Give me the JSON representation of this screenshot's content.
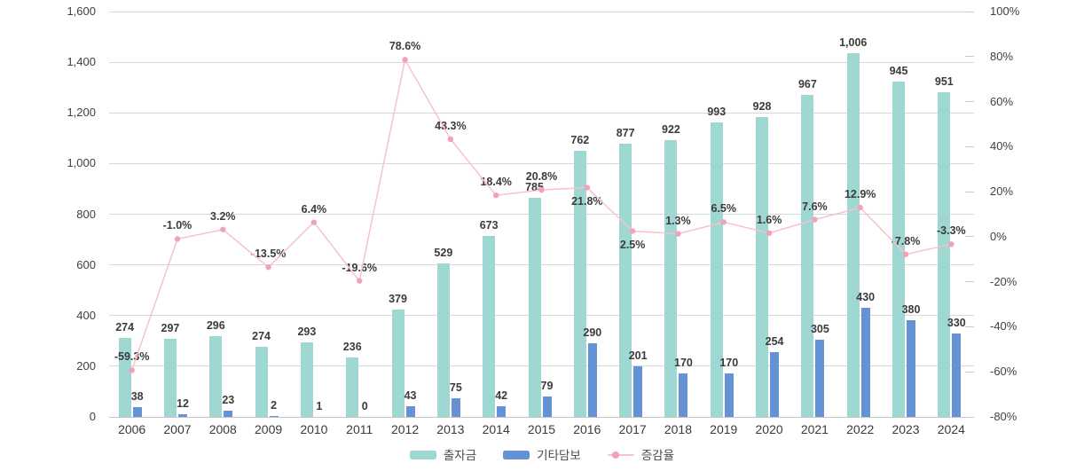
{
  "chart_data": {
    "type": "bar+line",
    "title": "",
    "categories": [
      "2006",
      "2007",
      "2008",
      "2009",
      "2010",
      "2011",
      "2012",
      "2013",
      "2014",
      "2015",
      "2016",
      "2017",
      "2018",
      "2019",
      "2020",
      "2021",
      "2022",
      "2023",
      "2024"
    ],
    "series": [
      {
        "name": "출자금",
        "type": "bar",
        "color": "#9fd7d2",
        "values": [
          274,
          297,
          296,
          274,
          293,
          236,
          379,
          529,
          673,
          785,
          762,
          877,
          922,
          993,
          928,
          967,
          1006,
          945,
          951
        ]
      },
      {
        "name": "기타담보",
        "type": "bar",
        "color": "#6592d5",
        "values": [
          38,
          12,
          23,
          2,
          1,
          0,
          43,
          75,
          42,
          79,
          290,
          201,
          170,
          170,
          254,
          305,
          430,
          380,
          330
        ]
      }
    ],
    "line": {
      "name": "증감율",
      "type": "line",
      "color": "#f6c3cd",
      "dot_color": "#f0a2b6",
      "values": [
        -59.3,
        -1.0,
        3.2,
        -13.5,
        6.4,
        -19.6,
        78.6,
        43.3,
        18.4,
        20.8,
        21.8,
        2.5,
        1.3,
        6.5,
        1.6,
        7.6,
        12.9,
        -7.8,
        -3.3
      ],
      "label_positions": [
        "above",
        "above",
        "above",
        "above",
        "above",
        "above",
        "above",
        "above",
        "above",
        "above",
        "below",
        "below",
        "above",
        "above",
        "above",
        "above",
        "above",
        "above",
        "above"
      ]
    },
    "left_axis": {
      "min": 0,
      "max": 1600,
      "step": 200
    },
    "right_axis": {
      "min": -80,
      "max": 100,
      "step": 20,
      "suffix": "%"
    },
    "layout_hints": {
      "teal_bar_height_mode": "sum of both series (출자금 + 기타담보)",
      "grid": "horizontal-only",
      "legend_position": "bottom-center",
      "grid_color": "#d8d8d8",
      "label_color": "#3b3b3b"
    }
  }
}
